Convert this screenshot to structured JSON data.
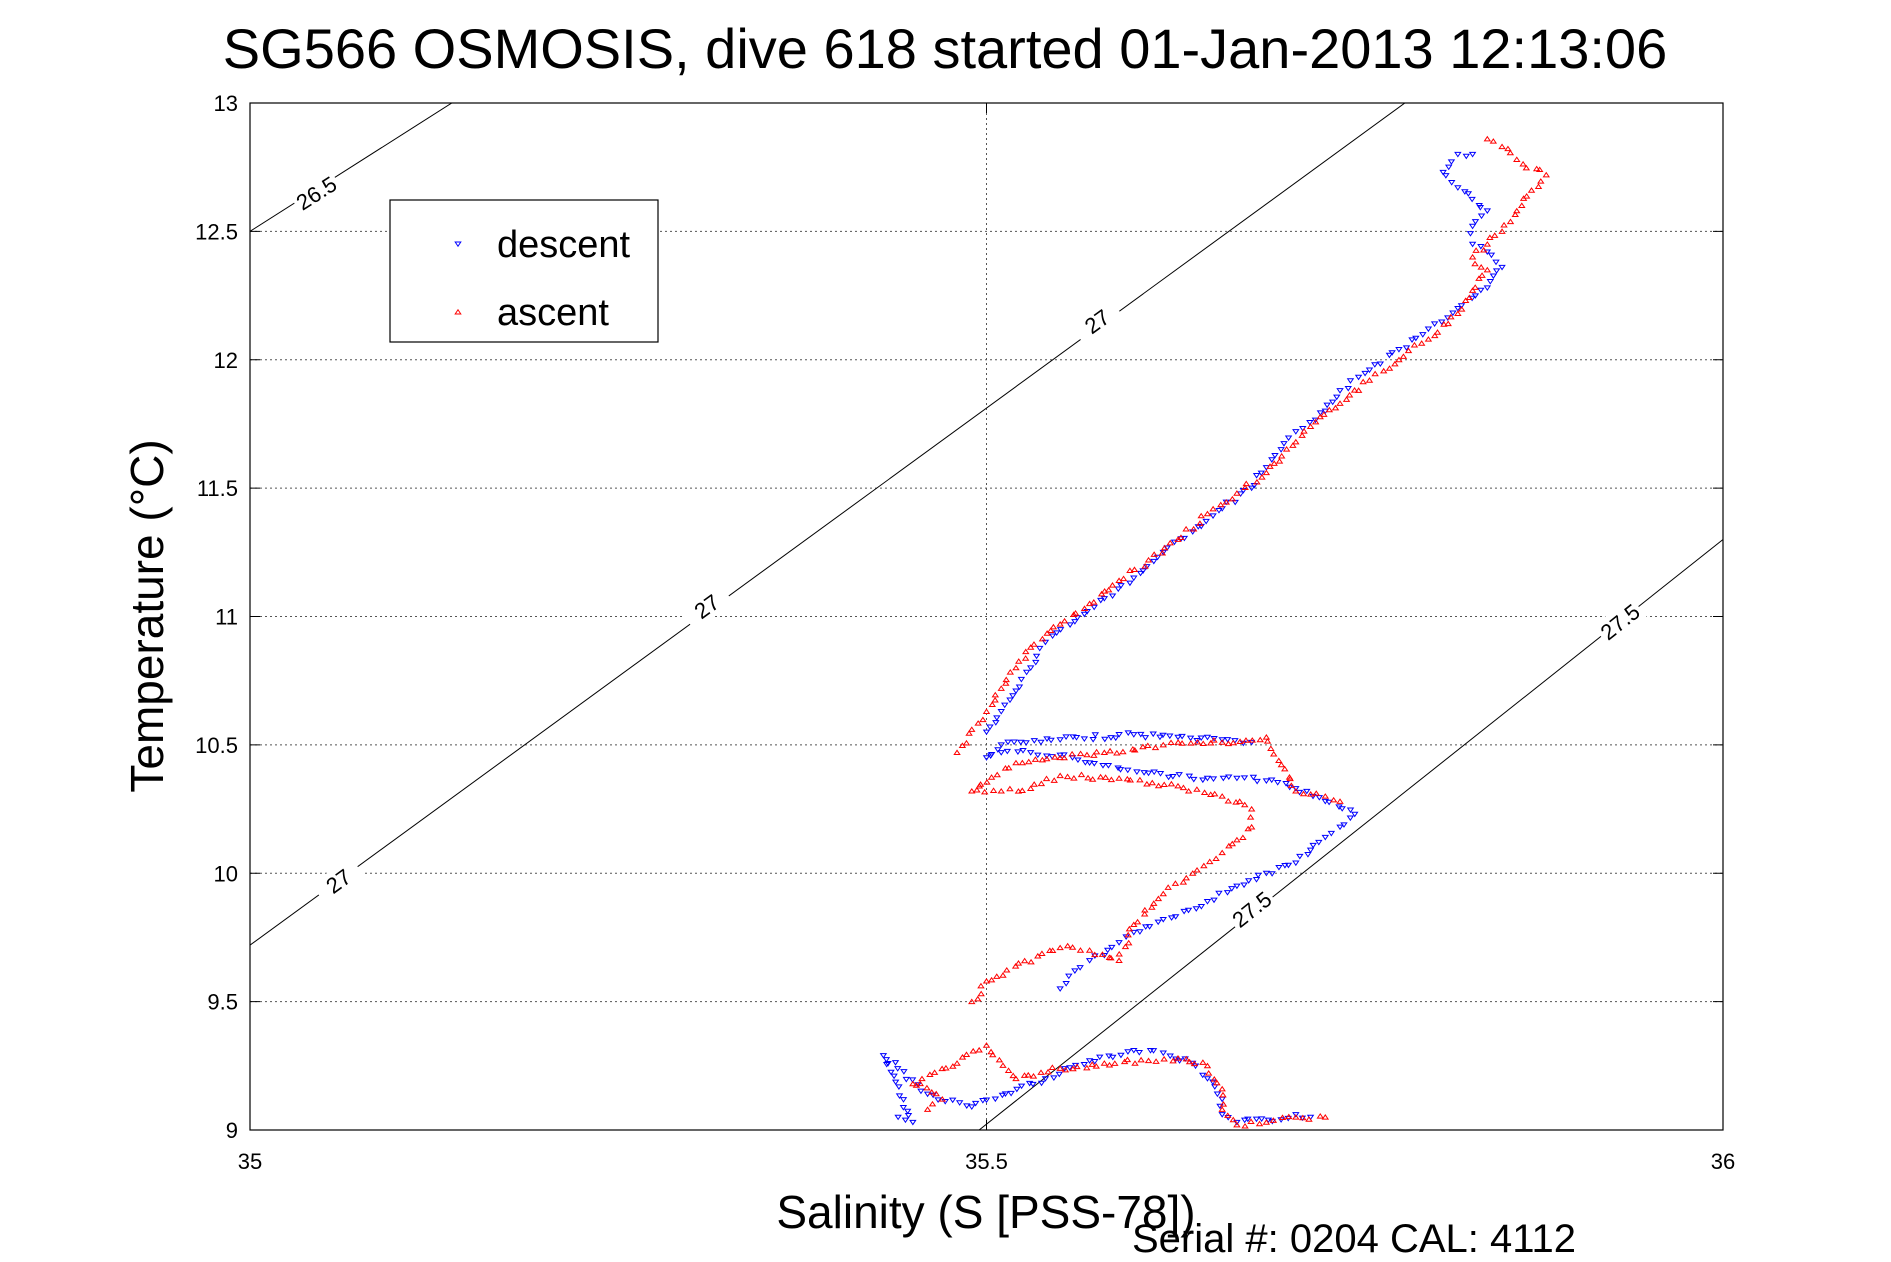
{
  "chart_data": {
    "type": "scatter",
    "title": "SG566 OSMOSIS, dive 618 started 01-Jan-2013 12:13:06",
    "xlabel": "Salinity (S [PSS-78])",
    "ylabel": "Temperature (°C)",
    "xlim": [
      35,
      36
    ],
    "ylim": [
      9,
      13
    ],
    "xticks": [
      35,
      35.5,
      36
    ],
    "xtick_labels": [
      "35",
      "35.5",
      "36"
    ],
    "yticks": [
      9,
      9.5,
      10,
      10.5,
      11,
      11.5,
      12,
      12.5,
      13
    ],
    "ytick_labels": [
      "9",
      "9.5",
      "10",
      "10.5",
      "11",
      "11.5",
      "12",
      "12.5",
      "13"
    ],
    "grid": true,
    "legend_position": "top-left",
    "footer": "Serial #: 0204  CAL: 4112",
    "density_contours": [
      {
        "label": "26.5",
        "points": [
          [
            35.0,
            12.5
          ],
          [
            35.137,
            13.0
          ]
        ],
        "label_at": [
          [
            35.045,
            12.65
          ]
        ]
      },
      {
        "label": "27",
        "points": [
          [
            35.0,
            9.72
          ],
          [
            35.784,
            13.0
          ]
        ],
        "label_at": [
          [
            35.06,
            9.97
          ],
          [
            35.31,
            11.04
          ],
          [
            35.575,
            12.15
          ]
        ]
      },
      {
        "label": "27.5",
        "points": [
          [
            35.495,
            9.0
          ],
          [
            36.0,
            11.3
          ]
        ],
        "label_at": [
          [
            35.68,
            9.86
          ],
          [
            35.93,
            10.98
          ]
        ]
      }
    ],
    "series": [
      {
        "name": "descent",
        "marker": "triangle-down",
        "color": "#0000ff",
        "points": [
          [
            35.44,
            9.05
          ],
          [
            35.45,
            9.03
          ],
          [
            35.43,
            9.29
          ],
          [
            35.46,
            9.14
          ],
          [
            35.49,
            9.09
          ],
          [
            35.54,
            9.2
          ],
          [
            35.57,
            9.27
          ],
          [
            35.6,
            9.31
          ],
          [
            35.62,
            9.3
          ],
          [
            35.64,
            9.26
          ],
          [
            35.65,
            9.2
          ],
          [
            35.66,
            9.12
          ],
          [
            35.66,
            9.06
          ],
          [
            35.67,
            9.03
          ],
          [
            35.7,
            9.04
          ],
          [
            35.71,
            9.06
          ],
          [
            35.72,
            9.05
          ],
          [
            35.55,
            9.55
          ],
          [
            35.56,
            9.62
          ],
          [
            35.57,
            9.66
          ],
          [
            35.58,
            9.68
          ],
          [
            35.59,
            9.73
          ],
          [
            35.6,
            9.77
          ],
          [
            35.62,
            9.82
          ],
          [
            35.65,
            9.89
          ],
          [
            35.67,
            9.95
          ],
          [
            35.69,
            10.0
          ],
          [
            35.71,
            10.04
          ],
          [
            35.72,
            10.09
          ],
          [
            35.73,
            10.14
          ],
          [
            35.74,
            10.18
          ],
          [
            35.75,
            10.23
          ],
          [
            35.73,
            10.28
          ],
          [
            35.71,
            10.33
          ],
          [
            35.69,
            10.36
          ],
          [
            35.67,
            10.37
          ],
          [
            35.65,
            10.37
          ],
          [
            35.61,
            10.39
          ],
          [
            35.57,
            10.43
          ],
          [
            35.55,
            10.46
          ],
          [
            35.53,
            10.47
          ],
          [
            35.51,
            10.47
          ],
          [
            35.5,
            10.45
          ],
          [
            35.51,
            10.5
          ],
          [
            35.55,
            10.52
          ],
          [
            35.6,
            10.54
          ],
          [
            35.63,
            10.53
          ],
          [
            35.66,
            10.52
          ],
          [
            35.68,
            10.51
          ],
          [
            35.5,
            10.55
          ],
          [
            35.51,
            10.63
          ],
          [
            35.52,
            10.71
          ],
          [
            35.53,
            10.8
          ],
          [
            35.54,
            10.9
          ],
          [
            35.56,
            10.98
          ],
          [
            35.58,
            11.07
          ],
          [
            35.6,
            11.15
          ],
          [
            35.62,
            11.25
          ],
          [
            35.64,
            11.33
          ],
          [
            35.66,
            11.42
          ],
          [
            35.68,
            11.5
          ],
          [
            35.69,
            11.58
          ],
          [
            35.7,
            11.65
          ],
          [
            35.71,
            11.72
          ],
          [
            35.73,
            11.8
          ],
          [
            35.74,
            11.88
          ],
          [
            35.76,
            11.96
          ],
          [
            35.78,
            12.04
          ],
          [
            35.8,
            12.12
          ],
          [
            35.82,
            12.2
          ],
          [
            35.84,
            12.28
          ],
          [
            35.85,
            12.36
          ],
          [
            35.84,
            12.42
          ],
          [
            35.83,
            12.45
          ],
          [
            35.83,
            12.52
          ],
          [
            35.84,
            12.58
          ],
          [
            35.82,
            12.67
          ],
          [
            35.81,
            12.73
          ],
          [
            35.82,
            12.8
          ],
          [
            35.83,
            12.8
          ]
        ]
      },
      {
        "name": "ascent",
        "marker": "triangle-up",
        "color": "#ff0000",
        "points": [
          [
            35.46,
            9.08
          ],
          [
            35.47,
            9.12
          ],
          [
            35.45,
            9.18
          ],
          [
            35.48,
            9.26
          ],
          [
            35.5,
            9.33
          ],
          [
            35.52,
            9.2
          ],
          [
            35.55,
            9.24
          ],
          [
            35.58,
            9.26
          ],
          [
            35.61,
            9.27
          ],
          [
            35.63,
            9.28
          ],
          [
            35.65,
            9.25
          ],
          [
            35.66,
            9.16
          ],
          [
            35.66,
            9.08
          ],
          [
            35.67,
            9.02
          ],
          [
            35.69,
            9.03
          ],
          [
            35.71,
            9.05
          ],
          [
            35.73,
            9.05
          ],
          [
            35.49,
            9.5
          ],
          [
            35.5,
            9.58
          ],
          [
            35.55,
            9.71
          ],
          [
            35.57,
            9.7
          ],
          [
            35.59,
            9.66
          ],
          [
            35.6,
            9.8
          ],
          [
            35.62,
            9.92
          ],
          [
            35.64,
            10.0
          ],
          [
            35.66,
            10.08
          ],
          [
            35.67,
            10.13
          ],
          [
            35.68,
            10.18
          ],
          [
            35.68,
            10.25
          ],
          [
            35.66,
            10.3
          ],
          [
            35.63,
            10.34
          ],
          [
            35.59,
            10.37
          ],
          [
            35.55,
            10.38
          ],
          [
            35.53,
            10.33
          ],
          [
            35.51,
            10.32
          ],
          [
            35.49,
            10.32
          ],
          [
            35.52,
            10.43
          ],
          [
            35.55,
            10.45
          ],
          [
            35.58,
            10.47
          ],
          [
            35.62,
            10.5
          ],
          [
            35.66,
            10.51
          ],
          [
            35.69,
            10.53
          ],
          [
            35.71,
            10.32
          ],
          [
            35.73,
            10.3
          ],
          [
            35.74,
            10.28
          ],
          [
            35.48,
            10.47
          ],
          [
            35.49,
            10.56
          ],
          [
            35.5,
            10.63
          ],
          [
            35.51,
            10.72
          ],
          [
            35.52,
            10.8
          ],
          [
            35.53,
            10.88
          ],
          [
            35.55,
            10.97
          ],
          [
            35.57,
            11.05
          ],
          [
            35.59,
            11.14
          ],
          [
            35.61,
            11.22
          ],
          [
            35.63,
            11.3
          ],
          [
            35.65,
            11.4
          ],
          [
            35.67,
            11.48
          ],
          [
            35.69,
            11.56
          ],
          [
            35.71,
            11.68
          ],
          [
            35.72,
            11.74
          ],
          [
            35.74,
            11.83
          ],
          [
            35.76,
            11.92
          ],
          [
            35.78,
            12.0
          ],
          [
            35.8,
            12.08
          ],
          [
            35.82,
            12.18
          ],
          [
            35.83,
            12.27
          ],
          [
            35.84,
            12.35
          ],
          [
            35.83,
            12.4
          ],
          [
            35.84,
            12.45
          ],
          [
            35.85,
            12.5
          ],
          [
            35.86,
            12.58
          ],
          [
            35.87,
            12.66
          ],
          [
            35.88,
            12.72
          ],
          [
            35.86,
            12.78
          ],
          [
            35.85,
            12.83
          ],
          [
            35.84,
            12.86
          ]
        ]
      }
    ]
  }
}
